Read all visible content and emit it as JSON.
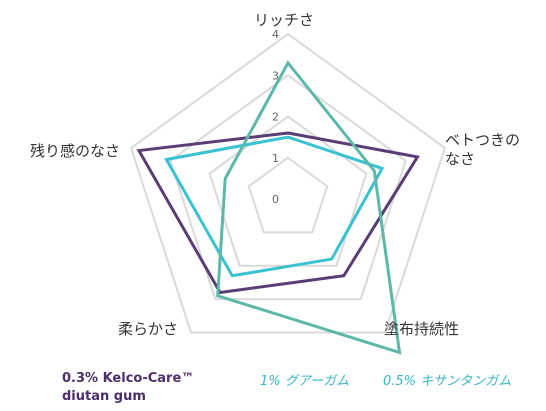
{
  "chart_data": {
    "type": "radar",
    "axes": [
      "リッチさ",
      "ベトつきの\nなさ",
      "塗布持続性",
      "柔らかさ",
      "残り感のなさ"
    ],
    "r_ticks": [
      "0",
      "1",
      "2",
      "3",
      "4"
    ],
    "r_range": [
      0,
      4
    ],
    "grid": true,
    "series": [
      {
        "name": "0.3% Kelco-Care™\ndiutan gum",
        "color": "#5a3d75",
        "values": [
          1.6,
          3.3,
          2.3,
          2.8,
          3.8
        ]
      },
      {
        "name": "1% グアーガム",
        "color": "#38c2d2",
        "values": [
          1.5,
          2.4,
          1.8,
          2.3,
          3.1
        ]
      },
      {
        "name": "0.5% キサンタンガム",
        "color": "#5cb8a8",
        "values": [
          3.3,
          2.2,
          4.6,
          2.9,
          1.6
        ]
      }
    ],
    "legend_position": "bottom"
  }
}
